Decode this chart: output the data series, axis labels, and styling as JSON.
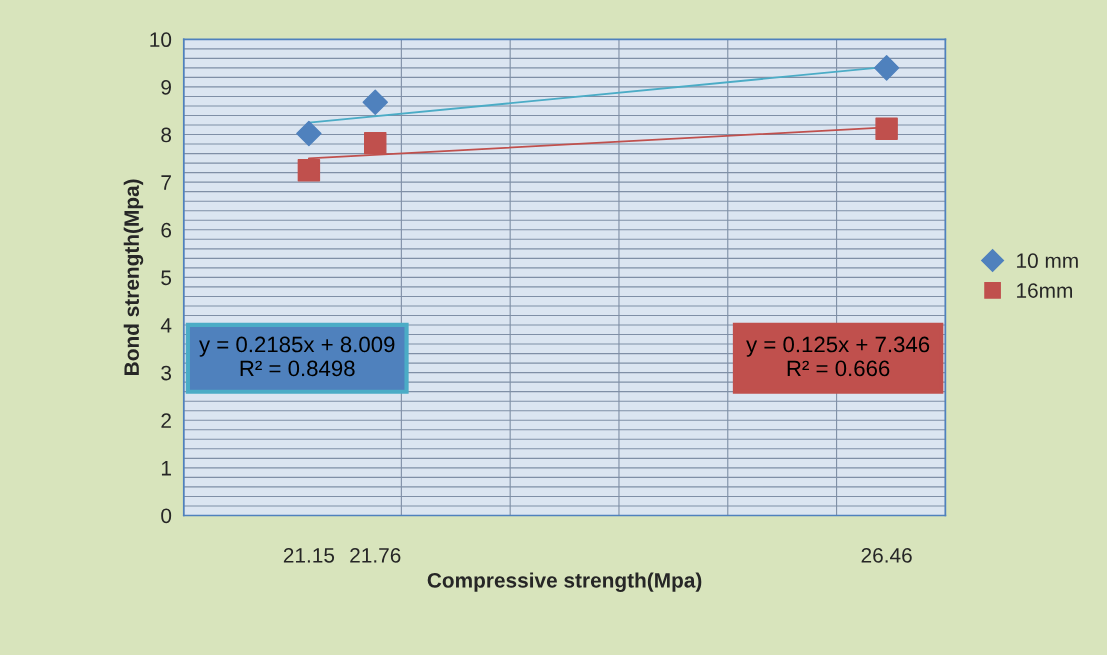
{
  "chart_data": {
    "type": "scatter",
    "xlabel": "Compressive strength(Mpa)",
    "ylabel": "Bond strength(Mpa)",
    "xlim": [
      20,
      27
    ],
    "ylim": [
      0,
      10
    ],
    "xticks": [
      {
        "value": 20,
        "label": null
      },
      {
        "value": 21.15,
        "label": "21.15"
      },
      {
        "value": 21.76,
        "label": "21.76"
      },
      {
        "value": 22,
        "label": null
      },
      {
        "value": 23,
        "label": null
      },
      {
        "value": 24,
        "label": null
      },
      {
        "value": 25,
        "label": null
      },
      {
        "value": 26,
        "label": null
      },
      {
        "value": 26.46,
        "label": "26.46"
      },
      {
        "value": 27,
        "label": null
      }
    ],
    "yticks": [
      0,
      1,
      2,
      3,
      4,
      5,
      6,
      7,
      8,
      9,
      10
    ],
    "series": [
      {
        "name": "10 mm",
        "color": "#4f81bd",
        "marker": "diamond",
        "x": [
          21.15,
          21.76,
          26.46
        ],
        "values": [
          8.02,
          8.68,
          9.4
        ]
      },
      {
        "name": "16mm",
        "color": "#c0504d",
        "marker": "square",
        "x": [
          21.15,
          21.76,
          26.46
        ],
        "values": [
          7.25,
          7.82,
          8.12
        ]
      },
      {
        "type": "line",
        "color": "#4bacc6",
        "x": [
          21.15,
          26.46
        ],
        "values": [
          8.25,
          9.42
        ]
      },
      {
        "type": "line",
        "color": "#c0504d",
        "x": [
          21.15,
          26.46
        ],
        "values": [
          7.5,
          8.15
        ]
      }
    ],
    "annotations": [
      "y = 0.2185x + 8.009\nR² = 0.8498",
      "y = 0.125x + 7.346\nR² = 0.666"
    ],
    "grid": true,
    "legend": "right"
  }
}
